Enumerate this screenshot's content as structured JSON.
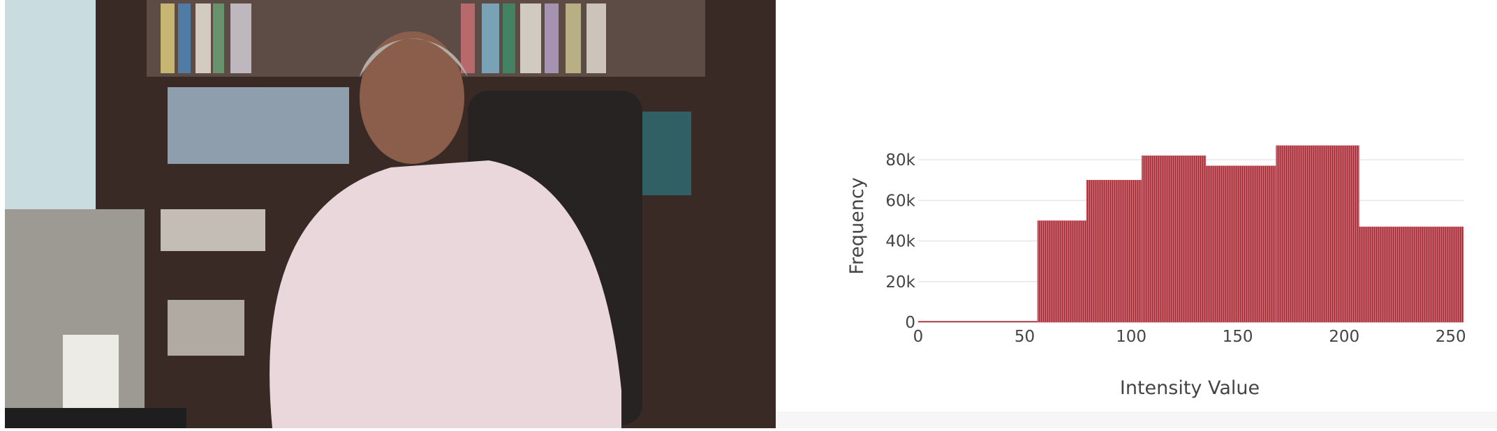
{
  "chart_data": {
    "type": "histogram",
    "x_label": "Intensity Value",
    "y_label": "Frequency",
    "bins": [
      0,
      56,
      79,
      105,
      135,
      168,
      207,
      256
    ],
    "values": [
      0,
      50000,
      70000,
      82000,
      77000,
      87000,
      47000
    ],
    "color": "#c9545e",
    "xlim": [
      0,
      256
    ],
    "ylim": [
      0,
      90000
    ],
    "xticks": [
      0,
      50,
      100,
      150,
      200,
      250
    ],
    "yticks": [
      0,
      {
        "value": 20000,
        "label": "20k"
      },
      {
        "value": 40000,
        "label": "40k"
      },
      {
        "value": 60000,
        "label": "60k"
      },
      {
        "value": 80000,
        "label": "80k"
      }
    ],
    "grid": true
  }
}
